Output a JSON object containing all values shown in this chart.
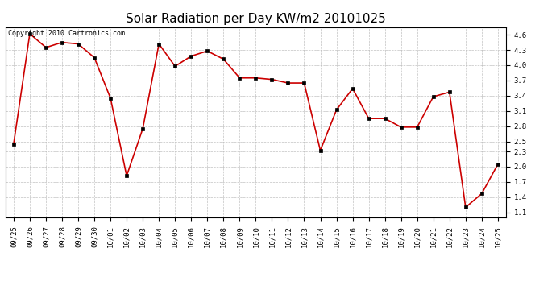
{
  "title": "Solar Radiation per Day KW/m2 20101025",
  "copyright_text": "Copyright 2010 Cartronics.com",
  "x_labels": [
    "09/25",
    "09/26",
    "09/27",
    "09/28",
    "09/29",
    "09/30",
    "10/01",
    "10/02",
    "10/03",
    "10/04",
    "10/05",
    "10/06",
    "10/07",
    "10/08",
    "10/09",
    "10/10",
    "10/11",
    "10/12",
    "10/13",
    "10/14",
    "10/15",
    "10/16",
    "10/17",
    "10/18",
    "10/19",
    "10/20",
    "10/21",
    "10/22",
    "10/23",
    "10/24",
    "10/25"
  ],
  "y_values": [
    2.45,
    4.62,
    4.35,
    4.45,
    4.42,
    4.15,
    3.35,
    1.82,
    2.75,
    4.42,
    3.98,
    4.18,
    4.28,
    4.12,
    3.75,
    3.75,
    3.72,
    3.65,
    3.65,
    2.32,
    3.12,
    3.54,
    2.95,
    2.95,
    2.78,
    2.78,
    3.38,
    3.47,
    1.2,
    1.47,
    2.05
  ],
  "line_color": "#cc0000",
  "marker_color": "#000000",
  "background_color": "#ffffff",
  "grid_color": "#bbbbbb",
  "yticks": [
    1.1,
    1.4,
    1.7,
    2.0,
    2.3,
    2.5,
    2.8,
    3.1,
    3.4,
    3.7,
    4.0,
    4.3,
    4.6
  ],
  "ylim": [
    1.0,
    4.75
  ],
  "title_fontsize": 11,
  "tick_fontsize": 6.5,
  "copyright_fontsize": 6
}
